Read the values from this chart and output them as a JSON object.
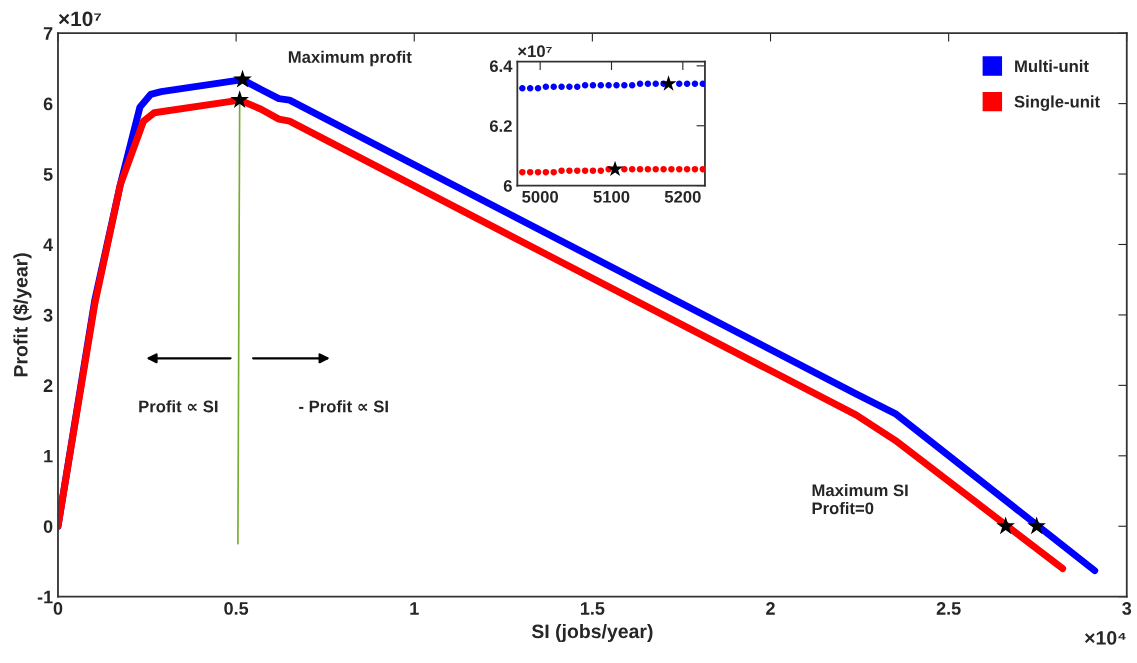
{
  "chart_data": [
    {
      "type": "line",
      "xlabel": "SI (jobs/year)",
      "ylabel": "Profit ($/year)",
      "xlim": [
        0,
        3
      ],
      "ylim": [
        -1,
        7
      ],
      "xticks": [
        0,
        0.5,
        1,
        1.5,
        2,
        2.5,
        3
      ],
      "yticks": [
        -1,
        0,
        1,
        2,
        3,
        4,
        5,
        6,
        7
      ],
      "grid": false,
      "legend": "top right",
      "line_style": "solid",
      "series": [
        {
          "name": "Multi-unit",
          "color": "#0000ff",
          "x": [
            0,
            0.103,
            0.175,
            0.23,
            0.26,
            0.29,
            0.518,
            0.57,
            0.62,
            0.65,
            2.24,
            2.35,
            2.91
          ],
          "values": [
            0,
            3.2,
            4.85,
            5.95,
            6.13,
            6.17,
            6.34,
            6.2,
            6.07,
            6.05,
            1.88,
            1.6,
            -0.63
          ]
        },
        {
          "name": "Single-unit",
          "color": "#ff0000",
          "x": [
            0,
            0.103,
            0.175,
            0.24,
            0.27,
            0.51,
            0.57,
            0.62,
            0.65,
            2.24,
            2.35,
            2.82
          ],
          "values": [
            0,
            3.15,
            4.85,
            5.75,
            5.87,
            6.05,
            5.92,
            5.78,
            5.75,
            1.58,
            1.22,
            -0.6
          ]
        },
        {
          "type": "line",
          "color": "#77ac30",
          "x": [
            0.505,
            0.51
          ],
          "values": [
            -0.25,
            6.05
          ]
        },
        {
          "type": "scatter",
          "marker": "star",
          "color": "#000000",
          "x": [
            0.518,
            0.51,
            2.747,
            2.66
          ],
          "values": [
            6.34,
            6.05,
            0,
            0
          ]
        }
      ],
      "annotations": [
        "×10⁷",
        "×10⁴",
        "Maximum profit",
        "Profit ∝ SI",
        "- Profit ∝ SI",
        "Maximum SI\nProfit=0"
      ]
    },
    {
      "type": "scatter",
      "marker": "circle",
      "xlim": [
        4968,
        5231
      ],
      "ylim": [
        6.0,
        6.414
      ],
      "xticks": [
        5000,
        5100,
        5200
      ],
      "yticks": [
        6,
        6.2,
        6.4
      ],
      "grid": false,
      "series": [
        {
          "color": "#0000ff",
          "x": [
            4975,
            4986,
            4997,
            5008,
            5019,
            5030,
            5041,
            5052,
            5063,
            5074,
            5085,
            5096,
            5107,
            5118,
            5129,
            5140,
            5151,
            5162,
            5173,
            5184,
            5195,
            5206,
            5217,
            5228
          ],
          "values": [
            6.325,
            6.325,
            6.325,
            6.33,
            6.33,
            6.33,
            6.33,
            6.33,
            6.335,
            6.335,
            6.335,
            6.335,
            6.335,
            6.335,
            6.335,
            6.34,
            6.34,
            6.34,
            6.34,
            null,
            6.34,
            6.34,
            6.34,
            6.34
          ]
        },
        {
          "color": "#ff0000",
          "x": [
            4975,
            4986,
            4997,
            5008,
            5019,
            5030,
            5041,
            5052,
            5063,
            5074,
            5085,
            5096,
            5107,
            5118,
            5129,
            5140,
            5151,
            5162,
            5173,
            5184,
            5195,
            5206,
            5217,
            5228
          ],
          "values": [
            6.045,
            6.045,
            6.045,
            6.045,
            6.045,
            6.05,
            6.05,
            6.05,
            6.05,
            6.05,
            6.05,
            6.055,
            null,
            6.055,
            6.055,
            6.055,
            6.055,
            6.055,
            6.055,
            6.055,
            6.055,
            6.055,
            6.055,
            6.055
          ]
        },
        {
          "marker": "star",
          "color": "#000000",
          "x": [
            5180,
            5105
          ],
          "values": [
            6.34,
            6.055
          ]
        }
      ],
      "annotations": [
        "×10⁷"
      ]
    }
  ]
}
